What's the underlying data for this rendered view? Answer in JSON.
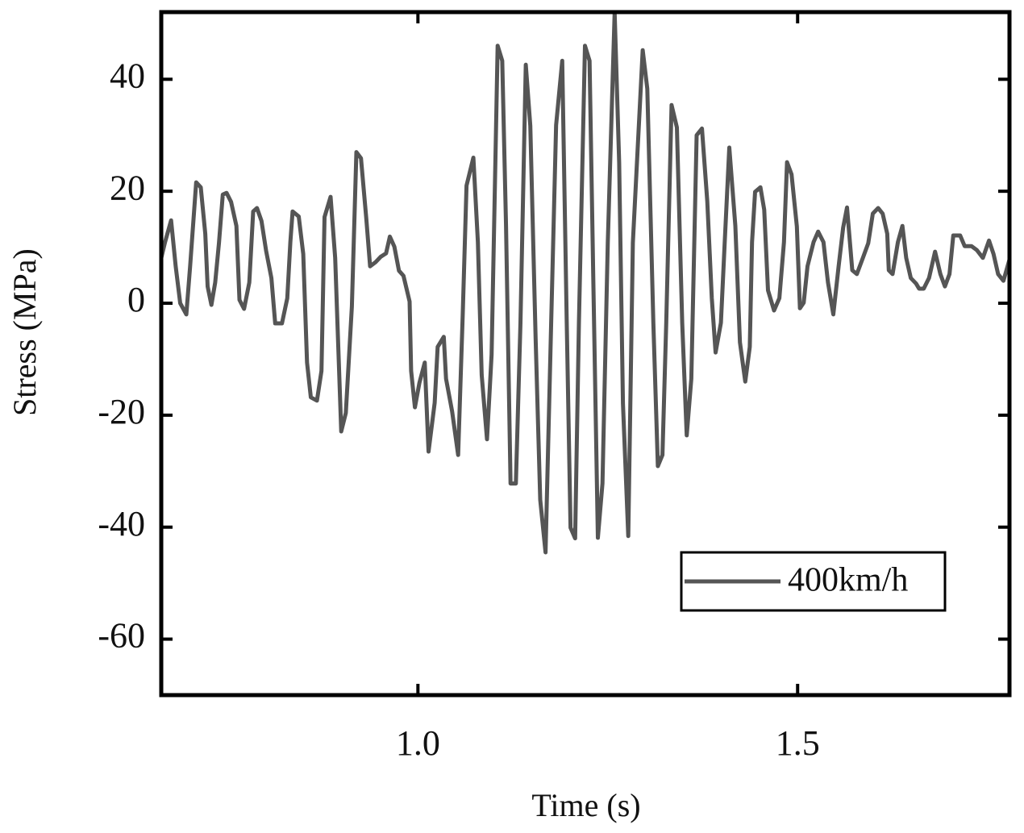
{
  "chart_data": {
    "type": "line",
    "x_label": "Time (s)",
    "y_label": "Stress (MPa)",
    "xlim": [
      0.662,
      1.779
    ],
    "ylim": [
      -70,
      52
    ],
    "xticks": [
      {
        "value": 1,
        "label": "1.0"
      },
      {
        "value": 1.5,
        "label": "1.5"
      }
    ],
    "yticks": [
      -60,
      -40,
      -20,
      0,
      20,
      40
    ],
    "legend": "lower right",
    "grid": false,
    "series": [
      {
        "name": "400km/h",
        "color": "#555555",
        "x": [
          0.662,
          0.667,
          0.675,
          0.681,
          0.687,
          0.695,
          0.7,
          0.708,
          0.714,
          0.72,
          0.723,
          0.728,
          0.733,
          0.738,
          0.743,
          0.748,
          0.754,
          0.761,
          0.765,
          0.771,
          0.778,
          0.783,
          0.788,
          0.794,
          0.8,
          0.807,
          0.812,
          0.821,
          0.828,
          0.832,
          0.835,
          0.843,
          0.849,
          0.854,
          0.859,
          0.867,
          0.873,
          0.877,
          0.885,
          0.891,
          0.899,
          0.905,
          0.913,
          0.919,
          0.925,
          0.932,
          0.937,
          0.944,
          0.951,
          0.958,
          0.963,
          0.969,
          0.975,
          0.981,
          0.989,
          0.991,
          0.996,
          1.002,
          1.009,
          1.014,
          1.022,
          1.026,
          1.034,
          1.037,
          1.045,
          1.053,
          1.059,
          1.064,
          1.073,
          1.079,
          1.084,
          1.091,
          1.097,
          1.105,
          1.111,
          1.116,
          1.122,
          1.129,
          1.135,
          1.142,
          1.148,
          1.155,
          1.161,
          1.168,
          1.175,
          1.182,
          1.19,
          1.196,
          1.201,
          1.207,
          1.212,
          1.22,
          1.226,
          1.231,
          1.237,
          1.243,
          1.25,
          1.259,
          1.265,
          1.27,
          1.277,
          1.283,
          1.296,
          1.302,
          1.31,
          1.316,
          1.322,
          1.327,
          1.334,
          1.341,
          1.348,
          1.354,
          1.36,
          1.367,
          1.374,
          1.381,
          1.387,
          1.392,
          1.399,
          1.404,
          1.41,
          1.418,
          1.424,
          1.431,
          1.437,
          1.44,
          1.444,
          1.451,
          1.456,
          1.461,
          1.469,
          1.476,
          1.482,
          1.486,
          1.492,
          1.499,
          1.503,
          1.508,
          1.513,
          1.521,
          1.527,
          1.534,
          1.54,
          1.547,
          1.554,
          1.56,
          1.565,
          1.572,
          1.578,
          1.586,
          1.593,
          1.599,
          1.606,
          1.612,
          1.618,
          1.62,
          1.625,
          1.632,
          1.638,
          1.643,
          1.649,
          1.656,
          1.66,
          1.666,
          1.673,
          1.681,
          1.688,
          1.694,
          1.7,
          1.705,
          1.714,
          1.72,
          1.729,
          1.736,
          1.744,
          1.752,
          1.758,
          1.764,
          1.771,
          1.779
        ],
        "values": [
          8.1,
          10.9,
          14.8,
          6.6,
          0,
          -2.0,
          6.6,
          21.6,
          20.7,
          12.4,
          3.0,
          -0.3,
          3.7,
          10.8,
          19.4,
          19.7,
          18.1,
          13.8,
          0.6,
          -1.0,
          3.7,
          16.4,
          17.0,
          14.7,
          9.4,
          4.5,
          -3.6,
          -3.6,
          0.9,
          10.9,
          16.4,
          15.5,
          8.8,
          -10.6,
          -16.8,
          -17.4,
          -12.1,
          15.4,
          19.0,
          8.1,
          -22.9,
          -19.6,
          -0.6,
          27.0,
          25.9,
          15.1,
          6.6,
          7.3,
          8.3,
          8.9,
          11.9,
          10.1,
          5.8,
          4.9,
          0.3,
          -12.1,
          -18.6,
          -14.2,
          -10.6,
          -26.5,
          -17.8,
          -7.8,
          -6.0,
          -13.5,
          -19.3,
          -27.1,
          -2.0,
          21.0,
          26.0,
          10.9,
          -12.8,
          -24.3,
          -9.2,
          46.0,
          43.3,
          13.8,
          -32.2,
          -32.2,
          -3.5,
          42.6,
          31.7,
          -6.3,
          -35.1,
          -44.5,
          -6.3,
          31.8,
          43.3,
          -3.5,
          -40.1,
          -42.0,
          -3.5,
          46.0,
          43.3,
          3.7,
          -41.9,
          -32.2,
          10.8,
          51.9,
          25.2,
          -17.9,
          -41.6,
          10.8,
          45.2,
          38.3,
          -3.5,
          -29.1,
          -27.1,
          -3.5,
          35.4,
          31.4,
          -3.5,
          -23.6,
          -13.5,
          30.0,
          31.2,
          18.2,
          0.9,
          -8.8,
          -3.5,
          10.8,
          27.8,
          13.8,
          -7.0,
          -14.0,
          -7.8,
          10.9,
          19.9,
          20.7,
          16.7,
          2.3,
          -1.3,
          0.9,
          10.9,
          25.2,
          23.0,
          13.7,
          -0.9,
          0.1,
          6.6,
          10.9,
          12.8,
          10.9,
          3.7,
          -2.0,
          6.6,
          13.5,
          17.1,
          5.9,
          5.2,
          8.1,
          10.7,
          16.0,
          17.0,
          16.0,
          12.4,
          5.9,
          5.2,
          10.9,
          13.8,
          8.1,
          4.5,
          3.5,
          2.6,
          2.6,
          4.5,
          9.2,
          5.2,
          3.0,
          5.2,
          12.1,
          12.1,
          10.2,
          10.2,
          9.5,
          8.1,
          11.2,
          8.8,
          5.2,
          4.0,
          7.8
        ]
      }
    ]
  }
}
